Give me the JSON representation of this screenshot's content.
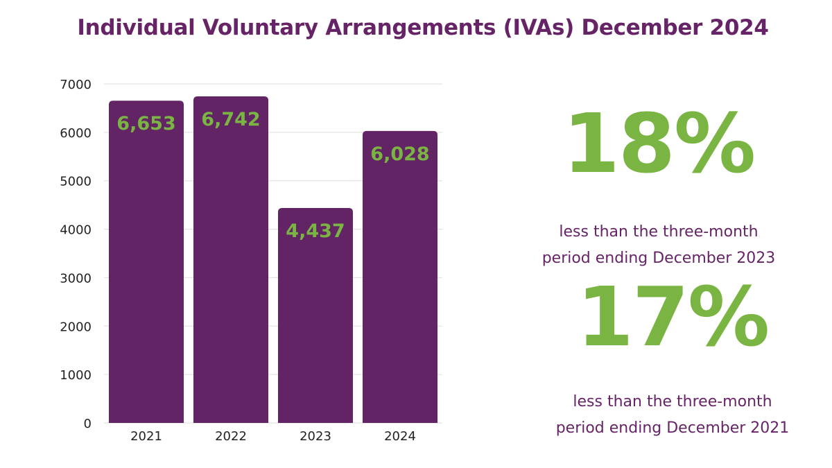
{
  "title": "Individual Voluntary Arrangements (IVAs) December 2024",
  "colors": {
    "title": "#662466",
    "bar": "#632466",
    "label": "#7ab543",
    "grid": "#dddddd",
    "axis_text": "#222222"
  },
  "chart_data": {
    "type": "bar",
    "title": "Individual Voluntary Arrangements (IVAs) December 2024",
    "categories": [
      "2021",
      "2022",
      "2023",
      "2024"
    ],
    "values": [
      6653,
      6742,
      4437,
      6028
    ],
    "data_labels": [
      "6,653",
      "6,742",
      "4,437",
      "6,028"
    ],
    "xlabel": "",
    "ylabel": "",
    "ylim": [
      0,
      7000
    ],
    "yticks": [
      0,
      1000,
      2000,
      3000,
      4000,
      5000,
      6000,
      7000
    ],
    "grid": true,
    "legend": "none"
  },
  "stats": [
    {
      "value": "18%",
      "caption_line1": "less than the three-month",
      "caption_line2": "period ending December 2023"
    },
    {
      "value": "17%",
      "caption_line1": "less than the three-month",
      "caption_line2": "period ending December 2021"
    }
  ]
}
